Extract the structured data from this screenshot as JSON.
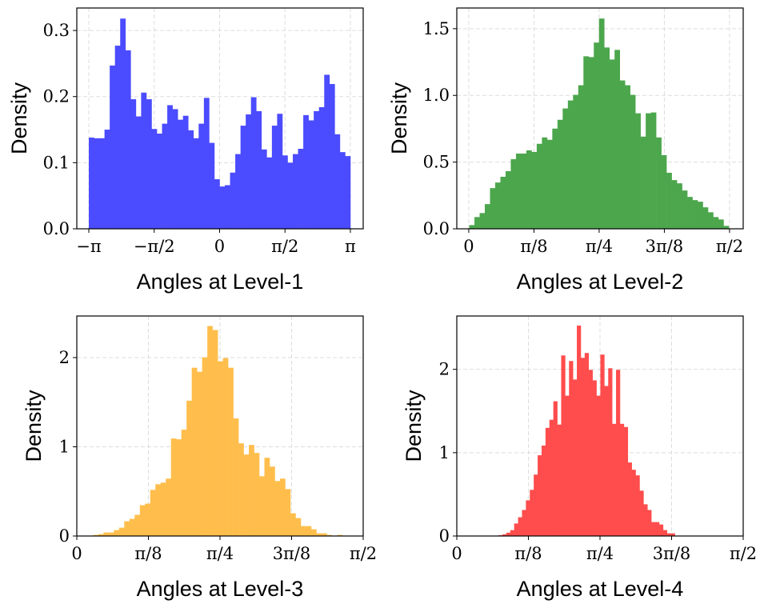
{
  "chart_data": [
    {
      "type": "bar",
      "subtype": "histogram",
      "xlabel": "Angles at Level-1",
      "ylabel": "Density",
      "color": "#4b4bff",
      "xlim": [
        -3.43,
        3.45
      ],
      "ylim": [
        0,
        0.334
      ],
      "grid": true,
      "bin_range": [
        -3.14159,
        3.14159
      ],
      "values": [
        0.138,
        0.137,
        0.137,
        0.15,
        0.247,
        0.277,
        0.318,
        0.27,
        0.196,
        0.17,
        0.206,
        0.196,
        0.151,
        0.144,
        0.159,
        0.187,
        0.181,
        0.165,
        0.171,
        0.149,
        0.137,
        0.159,
        0.198,
        0.13,
        0.075,
        0.064,
        0.066,
        0.085,
        0.113,
        0.156,
        0.173,
        0.199,
        0.178,
        0.12,
        0.108,
        0.156,
        0.174,
        0.111,
        0.1,
        0.113,
        0.121,
        0.172,
        0.164,
        0.178,
        0.184,
        0.233,
        0.219,
        0.143,
        0.116,
        0.11
      ],
      "xticks": [
        {
          "value": -3.14159,
          "label": "−π"
        },
        {
          "value": -1.5708,
          "label": "−π/2"
        },
        {
          "value": 0,
          "label": "0"
        },
        {
          "value": 1.5708,
          "label": "π/2"
        },
        {
          "value": 3.14159,
          "label": "π"
        }
      ],
      "yticks": [
        {
          "value": 0,
          "label": "0.0"
        },
        {
          "value": 0.1,
          "label": "0.1"
        },
        {
          "value": 0.2,
          "label": "0.2"
        },
        {
          "value": 0.3,
          "label": "0.3"
        }
      ]
    },
    {
      "type": "bar",
      "subtype": "histogram",
      "xlabel": "Angles at Level-2",
      "ylabel": "Density",
      "color": "#4ca64c",
      "xlim": [
        -0.072,
        1.653
      ],
      "ylim": [
        0,
        1.655
      ],
      "grid": true,
      "bin_range": [
        0.003,
        1.566
      ],
      "values": [
        0.028,
        0.088,
        0.118,
        0.185,
        0.305,
        0.347,
        0.39,
        0.432,
        0.522,
        0.564,
        0.564,
        0.588,
        0.576,
        0.637,
        0.685,
        0.667,
        0.751,
        0.817,
        0.902,
        0.962,
        1.004,
        1.076,
        1.293,
        1.287,
        1.396,
        1.576,
        1.359,
        1.269,
        1.341,
        1.112,
        1.076,
        1.004,
        0.866,
        0.691,
        0.866,
        0.872,
        0.685,
        0.552,
        0.42,
        0.365,
        0.341,
        0.287,
        0.239,
        0.215,
        0.203,
        0.161,
        0.124,
        0.088,
        0.07,
        0.022
      ],
      "xticks": [
        {
          "value": 0,
          "label": "0"
        },
        {
          "value": 0.3927,
          "label": "π/8"
        },
        {
          "value": 0.7854,
          "label": "π/4"
        },
        {
          "value": 1.1781,
          "label": "3π/8"
        },
        {
          "value": 1.5708,
          "label": "π/2"
        }
      ],
      "yticks": [
        {
          "value": 0,
          "label": "0.0"
        },
        {
          "value": 0.5,
          "label": "0.5"
        },
        {
          "value": 1.0,
          "label": "1.0"
        },
        {
          "value": 1.5,
          "label": "1.5"
        }
      ]
    },
    {
      "type": "bar",
      "subtype": "histogram",
      "xlabel": "Angles at Level-3",
      "ylabel": "Density",
      "color": "#ffbe4c",
      "xlim": [
        0,
        1.5708
      ],
      "ylim": [
        0,
        2.466
      ],
      "grid": true,
      "bin_range": [
        0.0895,
        1.456
      ],
      "values": [
        0.012,
        0.021,
        0.039,
        0.039,
        0.066,
        0.093,
        0.165,
        0.192,
        0.237,
        0.345,
        0.363,
        0.517,
        0.58,
        0.598,
        0.643,
        1.093,
        1.084,
        1.192,
        1.517,
        1.886,
        1.841,
        2.003,
        2.354,
        2.309,
        1.958,
        1.994,
        1.886,
        1.318,
        1.039,
        0.913,
        1.021,
        0.931,
        0.67,
        0.877,
        0.778,
        0.616,
        0.643,
        0.526,
        0.255,
        0.201,
        0.111,
        0.111,
        0.075,
        0.03,
        0.03,
        0.012,
        0,
        0.012
      ],
      "xticks": [
        {
          "value": 0,
          "label": "0"
        },
        {
          "value": 0.3927,
          "label": "π/8"
        },
        {
          "value": 0.7854,
          "label": "π/4"
        },
        {
          "value": 1.1781,
          "label": "3π/8"
        },
        {
          "value": 1.5708,
          "label": "π/2"
        }
      ],
      "yticks": [
        {
          "value": 0,
          "label": "0"
        },
        {
          "value": 1,
          "label": "1"
        },
        {
          "value": 2,
          "label": "2"
        }
      ]
    },
    {
      "type": "bar",
      "subtype": "histogram",
      "xlabel": "Angles at Level-4",
      "ylabel": "Density",
      "color": "#ff4c4c",
      "xlim": [
        0,
        1.5708
      ],
      "ylim": [
        0,
        2.64
      ],
      "grid": true,
      "bin_range": [
        0.2286,
        1.1957
      ],
      "values": [
        0.01,
        0.02,
        0.04,
        0.07,
        0.15,
        0.225,
        0.312,
        0.428,
        0.554,
        0.737,
        0.969,
        1.085,
        1.298,
        1.395,
        1.617,
        1.337,
        2.167,
        1.684,
        2.1,
        1.878,
        2.525,
        2.138,
        2.196,
        1.994,
        1.868,
        1.684,
        2.177,
        1.8,
        2.013,
        1.346,
        1.994,
        1.346,
        1.308,
        0.882,
        0.795,
        0.728,
        0.544,
        0.38,
        0.312,
        0.167,
        0.167,
        0.138,
        0.071,
        0.032,
        0.032
      ],
      "xticks": [
        {
          "value": 0,
          "label": "0"
        },
        {
          "value": 0.3927,
          "label": "π/8"
        },
        {
          "value": 0.7854,
          "label": "π/4"
        },
        {
          "value": 1.1781,
          "label": "3π/8"
        },
        {
          "value": 1.5708,
          "label": "π/2"
        }
      ],
      "yticks": [
        {
          "value": 0,
          "label": "0"
        },
        {
          "value": 1,
          "label": "1"
        },
        {
          "value": 2,
          "label": "2"
        }
      ]
    }
  ]
}
